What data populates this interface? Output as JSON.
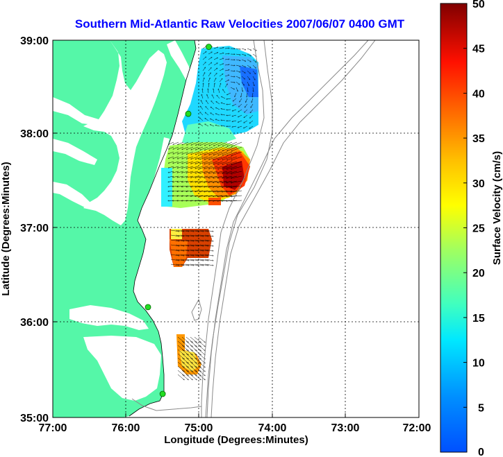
{
  "map": {
    "title": "Southern Mid-Atlantic Raw Velocities 2007/06/07 0400 GMT",
    "x_label": "Longitude (Degrees:Minutes)",
    "y_label": "Latitude (Degrees:Minutes)",
    "x_ticks": [
      "77:00",
      "76:00",
      "75:00",
      "74:00",
      "73:00",
      "72:00"
    ],
    "y_ticks": [
      "39:00",
      "38:00",
      "37:00",
      "36:00",
      "35:00"
    ],
    "lon_range": [
      -77,
      -72
    ],
    "lat_range": [
      35,
      39
    ],
    "land_color": "#55f7a8",
    "title_color": "#0000ff",
    "grid": true
  },
  "colorbar": {
    "label": "Surface Velocity (cm/s)",
    "ticks": [
      "50",
      "45",
      "40",
      "35",
      "30",
      "25",
      "20",
      "15",
      "10",
      "5",
      "0"
    ],
    "range": [
      0,
      50
    ],
    "colormap": "jet"
  },
  "stations": [
    {
      "lon": -74.87,
      "lat": 38.93
    },
    {
      "lon": -75.15,
      "lat": 38.22
    },
    {
      "lon": -75.7,
      "lat": 36.17
    },
    {
      "lon": -75.5,
      "lat": 35.25
    }
  ]
}
